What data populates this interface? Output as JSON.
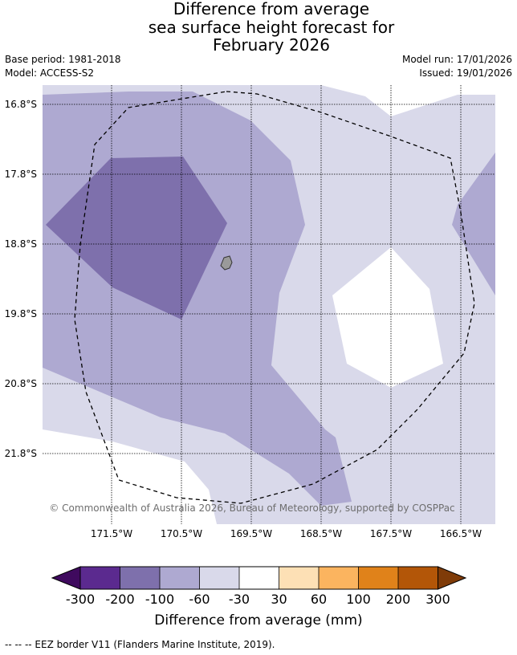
{
  "title": {
    "line1": "Difference from average",
    "line2": "sea surface height forecast for",
    "line3": "February 2026"
  },
  "meta": {
    "base_period": "Base period: 1981-2018",
    "model": "Model: ACCESS-S2",
    "model_run": "Model run: 17/01/2026",
    "issued": "Issued: 19/01/2026"
  },
  "map": {
    "lat_labels": [
      "16.8°S",
      "17.8°S",
      "18.8°S",
      "19.8°S",
      "20.8°S",
      "21.8°S"
    ],
    "lon_labels": [
      "171.5°W",
      "170.5°W",
      "169.5°W",
      "168.5°W",
      "167.5°W",
      "166.5°W"
    ],
    "copyright": "© Commonwealth of Australia 2026, Bureau of Meteorology, supported by COSPPac",
    "colors": {
      "band_-200_-100": "#7e70ac",
      "band_-100_-60": "#aea9d1",
      "band_-60_-30": "#d9d9ea",
      "band_-30_30": "#ffffff",
      "land": "#9a9a9a"
    }
  },
  "colorbar": {
    "ticks": [
      "-300",
      "-200",
      "-100",
      "-60",
      "-30",
      "30",
      "60",
      "100",
      "200",
      "300"
    ],
    "label": "Difference from average (mm)",
    "colors": [
      "#3f0a5e",
      "#5b2a8f",
      "#7e70ac",
      "#aea9d1",
      "#d9d9ea",
      "#ffffff",
      "#fde0b5",
      "#fbb45f",
      "#e0821a",
      "#b35608",
      "#7f3b08"
    ]
  },
  "footnote": "--  --  -- EEZ border V11 (Flanders Marine Institute, 2019)."
}
